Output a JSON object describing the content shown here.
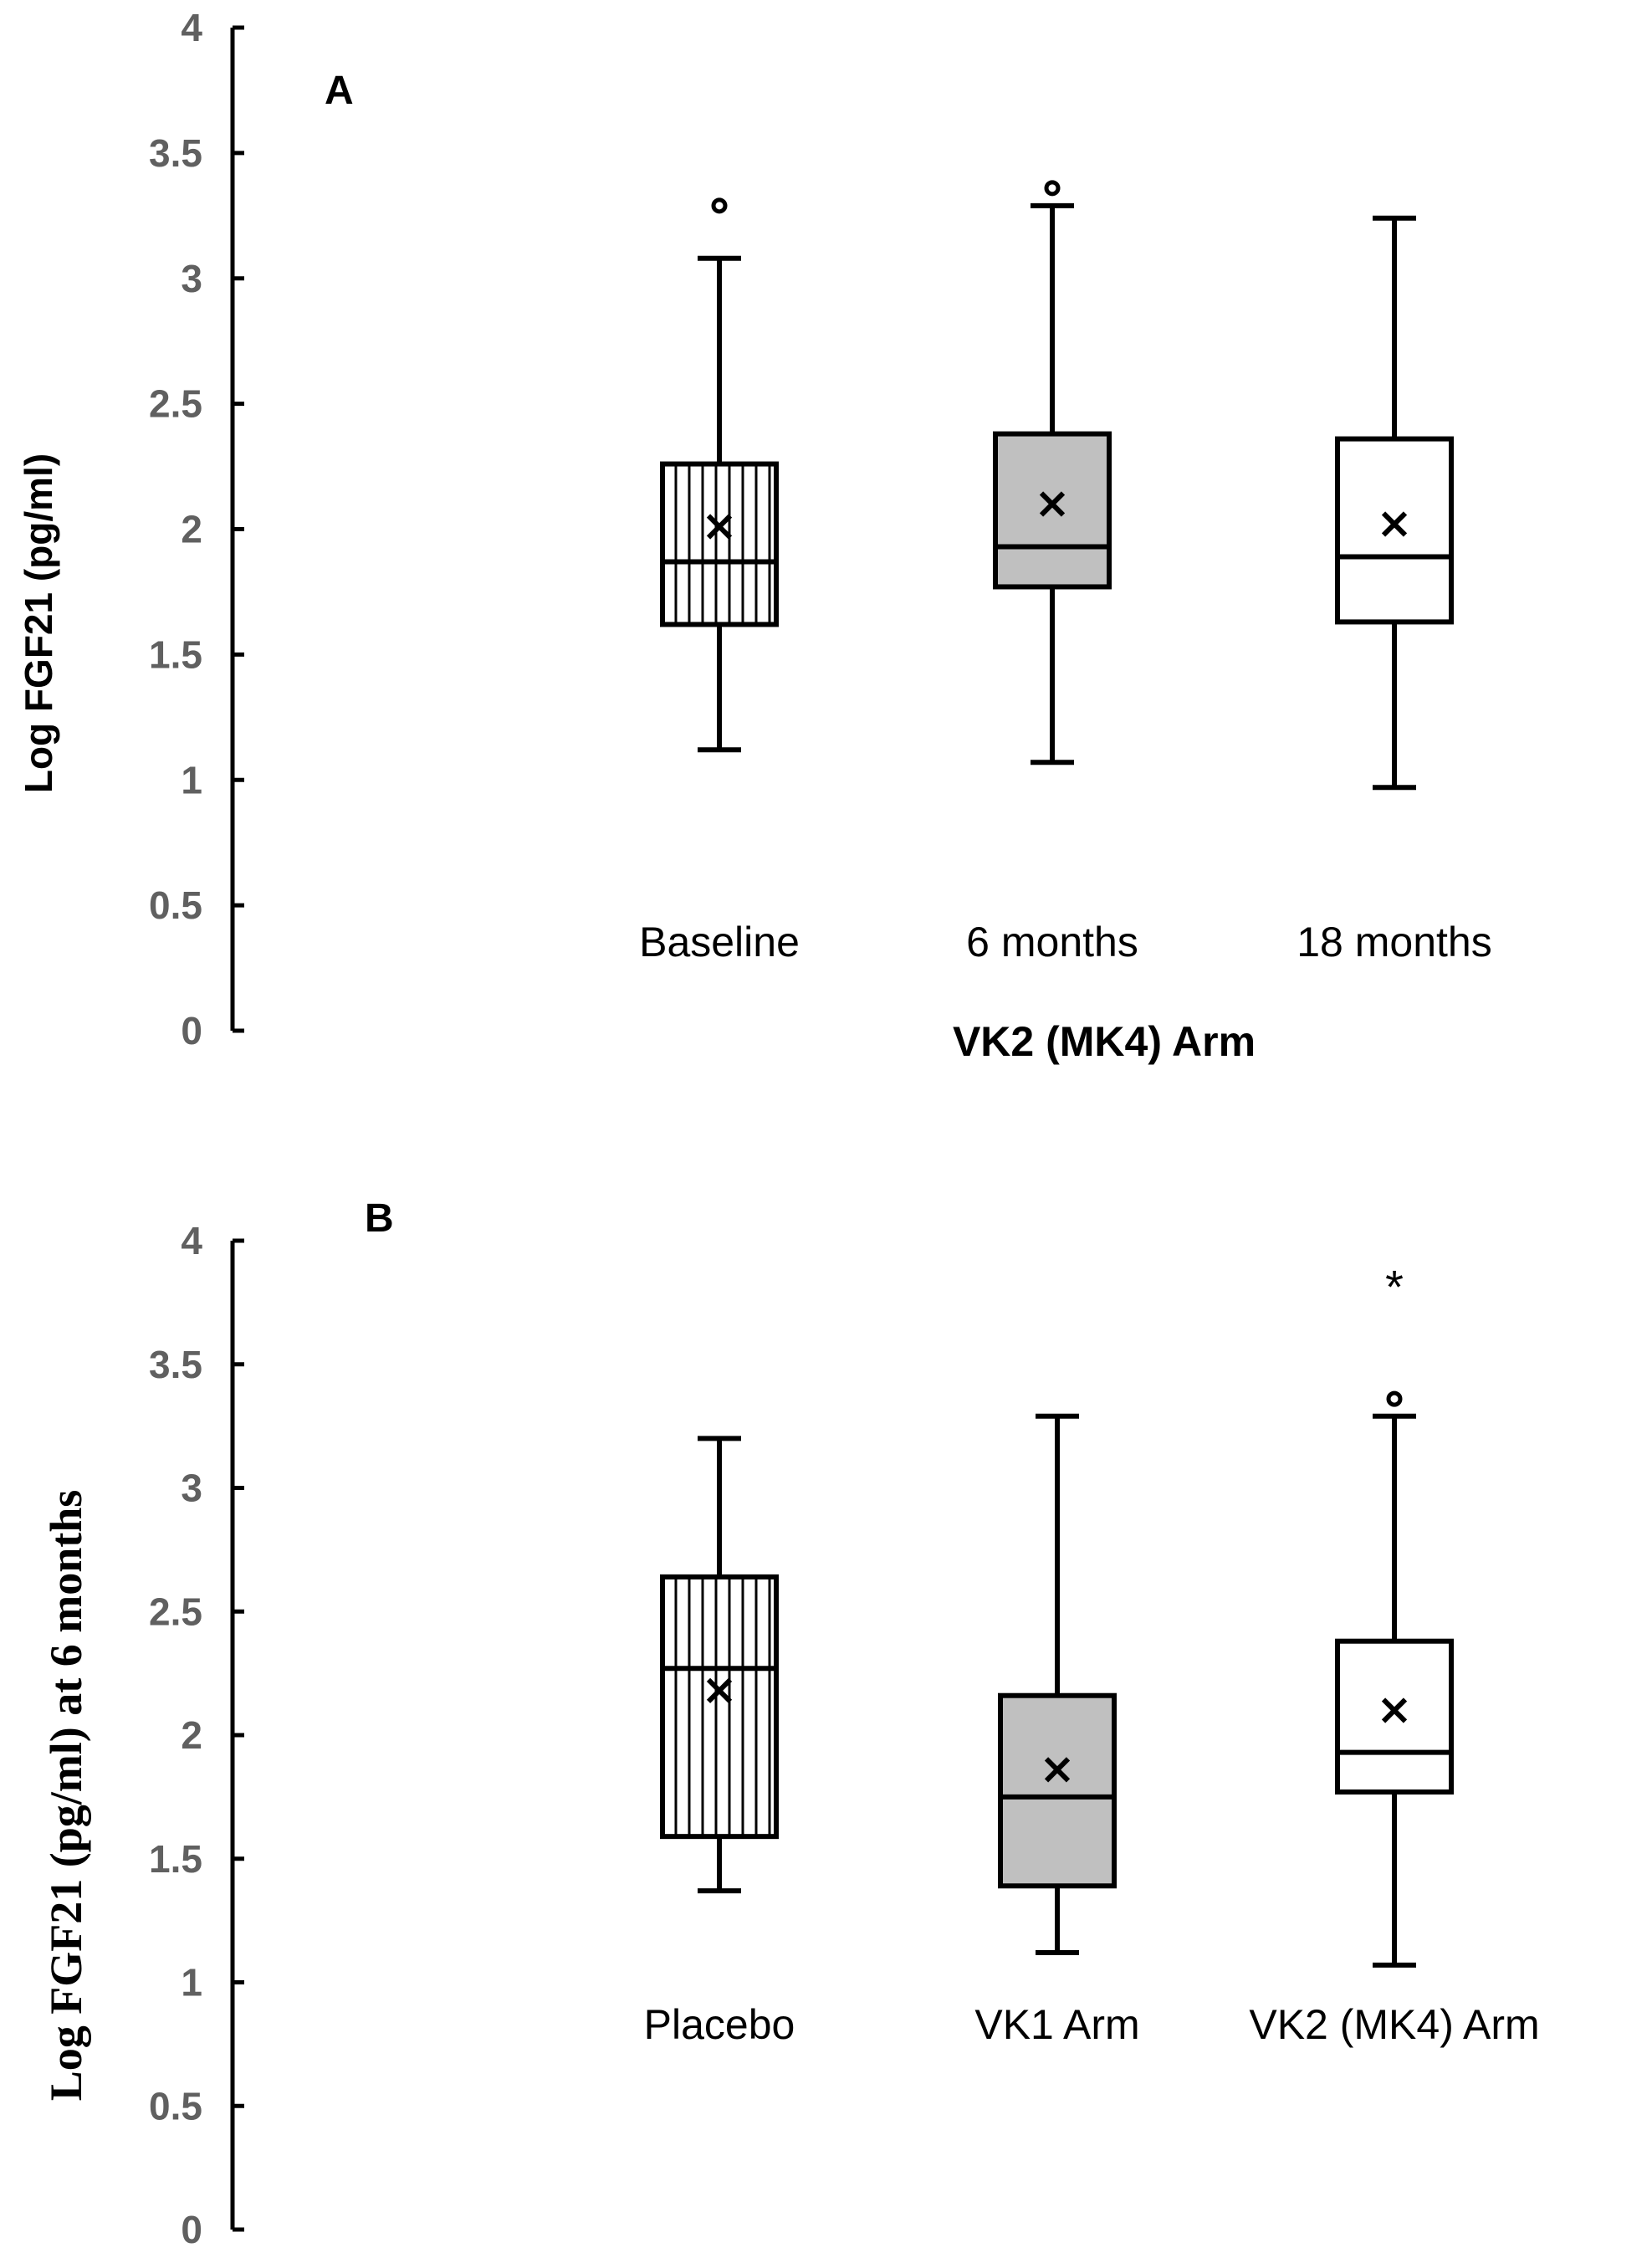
{
  "chart_data": [
    {
      "type": "box",
      "panel_label": "A",
      "xlabel": "VK2 (MK4) Arm",
      "ylabel": "Log FGF21 (pg/ml)",
      "ylim": [
        0,
        4
      ],
      "yticks": [
        "0",
        "0.5",
        "1",
        "1.5",
        "2",
        "2.5",
        "3",
        "3.5",
        "4"
      ],
      "grid": false,
      "categories": [
        "Baseline",
        "6 months",
        "18 months"
      ],
      "boxes": [
        {
          "category": "Baseline",
          "fill": "hatch",
          "min": 1.12,
          "q1": 1.62,
          "median": 1.87,
          "q3": 2.26,
          "max": 3.08,
          "mean": 2.01,
          "outliers": [
            3.29
          ]
        },
        {
          "category": "6 months",
          "fill": "#c0c0c0",
          "min": 1.07,
          "q1": 1.77,
          "median": 1.93,
          "q3": 2.38,
          "max": 3.29,
          "mean": 2.1,
          "outliers": [
            3.36
          ]
        },
        {
          "category": "18 months",
          "fill": "#ffffff",
          "min": 0.97,
          "q1": 1.63,
          "median": 1.89,
          "q3": 2.36,
          "max": 3.24,
          "mean": 2.02,
          "outliers": []
        }
      ],
      "annotations": []
    },
    {
      "type": "box",
      "panel_label": "B",
      "xlabel": "",
      "ylabel": "Log FGF21 (pg/ml) at 6 months",
      "ylim": [
        0,
        4
      ],
      "yticks": [
        "0",
        "0.5",
        "1",
        "1.5",
        "2",
        "2.5",
        "3",
        "3.5",
        "4"
      ],
      "grid": false,
      "categories": [
        "Placebo",
        "VK1 Arm",
        "VK2 (MK4) Arm"
      ],
      "boxes": [
        {
          "category": "Placebo",
          "fill": "hatch",
          "min": 1.37,
          "q1": 1.59,
          "median": 2.27,
          "q3": 2.64,
          "max": 3.2,
          "mean": 2.18,
          "outliers": []
        },
        {
          "category": "VK1 Arm",
          "fill": "#c0c0c0",
          "min": 1.12,
          "q1": 1.39,
          "median": 1.75,
          "q3": 2.16,
          "max": 3.29,
          "mean": 1.86,
          "outliers": []
        },
        {
          "category": "VK2 (MK4) Arm",
          "fill": "#ffffff",
          "min": 1.07,
          "q1": 1.77,
          "median": 1.93,
          "q3": 2.38,
          "max": 3.29,
          "mean": 2.1,
          "outliers": [
            3.36
          ]
        }
      ],
      "annotations": [
        {
          "category": "VK2 (MK4) Arm",
          "text": "*",
          "y": 3.85
        }
      ]
    }
  ]
}
